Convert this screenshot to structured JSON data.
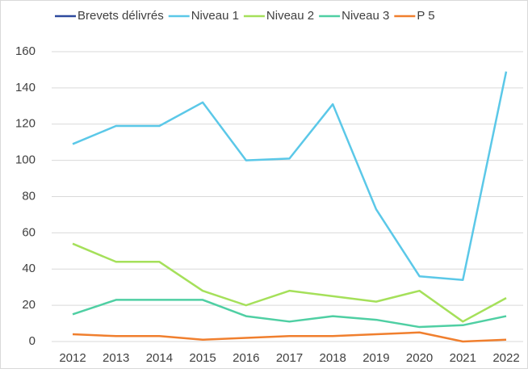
{
  "chart_data": {
    "type": "line",
    "categories": [
      "2012",
      "2013",
      "2014",
      "2015",
      "2016",
      "2017",
      "2018",
      "2019",
      "2020",
      "2021",
      "2022"
    ],
    "series": [
      {
        "name": "Brevets délivrés",
        "color": "#2e4a9e",
        "values": [
          null,
          null,
          null,
          null,
          null,
          null,
          null,
          null,
          null,
          null,
          null
        ]
      },
      {
        "name": "Niveau 1",
        "color": "#5bc8e8",
        "values": [
          109,
          119,
          119,
          132,
          100,
          101,
          131,
          73,
          36,
          34,
          149
        ]
      },
      {
        "name": "Niveau 2",
        "color": "#a5e05a",
        "values": [
          54,
          44,
          44,
          28,
          20,
          28,
          25,
          22,
          28,
          11,
          24
        ]
      },
      {
        "name": "Niveau 3",
        "color": "#4fcfa3",
        "values": [
          15,
          23,
          23,
          23,
          14,
          11,
          14,
          12,
          8,
          9,
          14
        ]
      },
      {
        "name": "P 5",
        "color": "#f07f2e",
        "values": [
          4,
          3,
          3,
          1,
          2,
          3,
          3,
          4,
          5,
          0,
          1
        ]
      }
    ],
    "ylim": [
      0,
      160
    ],
    "yticks": [
      0,
      20,
      40,
      60,
      80,
      100,
      120,
      140,
      160
    ],
    "grid": true,
    "legend": "top"
  }
}
